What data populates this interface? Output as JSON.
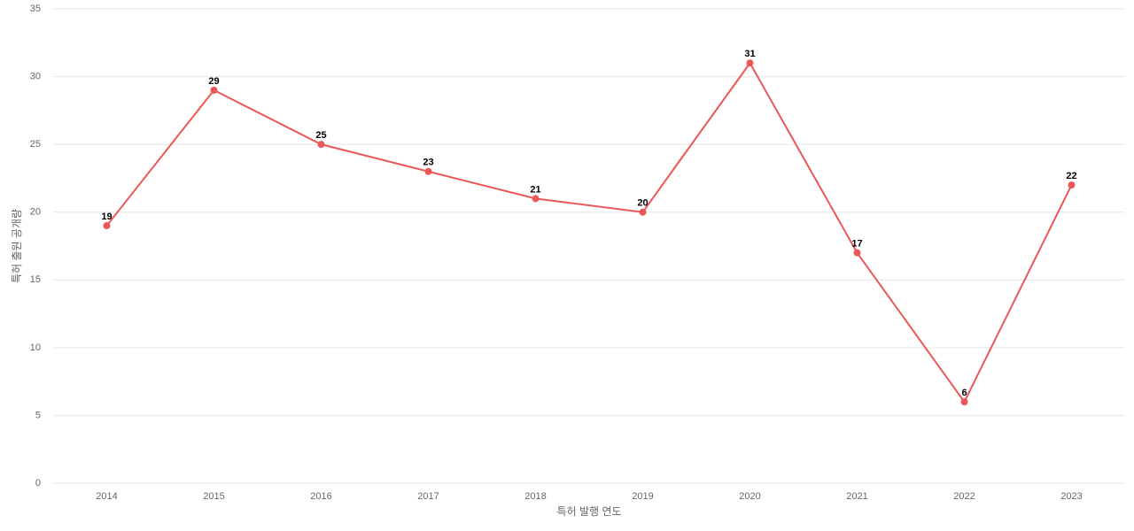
{
  "chart_data": {
    "type": "line",
    "x_label": "특허 발행 연도",
    "y_label": "특허 출원 공개량",
    "categories": [
      "2014",
      "2015",
      "2016",
      "2017",
      "2018",
      "2019",
      "2020",
      "2021",
      "2022",
      "2023"
    ],
    "series": [
      {
        "color": "#eb5757",
        "values": [
          19,
          29,
          25,
          23,
          21,
          20,
          31,
          17,
          6,
          22
        ]
      }
    ],
    "ylim": [
      0,
      35
    ],
    "yticks": [
      0,
      5,
      10,
      15,
      20,
      25,
      30,
      35
    ],
    "grid": true
  }
}
